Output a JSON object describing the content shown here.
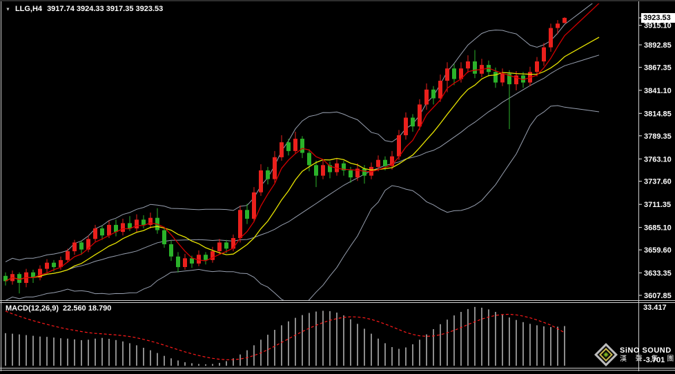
{
  "header": {
    "symbol": "LLG,H4",
    "ohlc": "3917.74 3924.33 3917.35 3923.53"
  },
  "macd_header": {
    "label": "MACD(12,26,9)",
    "values": "22.560 18.790"
  },
  "price_axis": {
    "current": "3923.53",
    "ticks": [
      "3915.10",
      "3892.85",
      "3867.35",
      "3841.10",
      "3814.85",
      "3789.35",
      "3763.10",
      "3737.60",
      "3711.35",
      "3685.10",
      "3659.60",
      "3633.35",
      "3607.85"
    ]
  },
  "macd_axis": {
    "max": "33.417",
    "min": "-3.701"
  },
  "logo": {
    "brand": "SiNO SOUND",
    "brand_cn": "漢 聲 集 團"
  },
  "colors": {
    "up": "#ea201c",
    "down": "#2bb32a",
    "band": "#98a0b0",
    "ma_fast": "#d40000",
    "ma_slow": "#e8e400",
    "macd_bar": "#c8c8c8",
    "macd_signal": "#ff1a1a",
    "bg": "#000000",
    "axis_text": "#ffffff",
    "badge_bg": "#ffffff",
    "badge_text": "#000000"
  },
  "chart_data": {
    "type": "candlestick",
    "symbol": "LLG",
    "timeframe": "H4",
    "title": "LLG,H4",
    "current_ohlc": {
      "open": 3917.74,
      "high": 3924.33,
      "low": 3917.35,
      "close": 3923.53
    },
    "y_axis_ticks": [
      3915.1,
      3892.85,
      3867.35,
      3841.1,
      3814.85,
      3789.35,
      3763.1,
      3737.6,
      3711.35,
      3685.1,
      3659.6,
      3633.35,
      3607.85
    ],
    "ylim": [
      3600,
      3930
    ],
    "grid": false,
    "legend_position": "none",
    "candles_ohlc": [
      [
        3630,
        3634,
        3619,
        3624
      ],
      [
        3624,
        3636,
        3620,
        3632
      ],
      [
        3632,
        3634,
        3610,
        3622
      ],
      [
        3622,
        3638,
        3617,
        3634
      ],
      [
        3634,
        3637,
        3622,
        3628
      ],
      [
        3628,
        3642,
        3625,
        3638
      ],
      [
        3638,
        3649,
        3634,
        3645
      ],
      [
        3645,
        3648,
        3635,
        3640
      ],
      [
        3640,
        3652,
        3637,
        3648
      ],
      [
        3648,
        3661,
        3645,
        3658
      ],
      [
        3658,
        3671,
        3654,
        3668
      ],
      [
        3668,
        3670,
        3654,
        3660
      ],
      [
        3660,
        3676,
        3657,
        3672
      ],
      [
        3672,
        3688,
        3669,
        3684
      ],
      [
        3684,
        3687,
        3671,
        3676
      ],
      [
        3676,
        3693,
        3673,
        3688
      ],
      [
        3688,
        3694,
        3675,
        3680
      ],
      [
        3680,
        3695,
        3676,
        3690
      ],
      [
        3690,
        3698,
        3681,
        3684
      ],
      [
        3684,
        3700,
        3680,
        3694
      ],
      [
        3694,
        3699,
        3684,
        3688
      ],
      [
        3688,
        3702,
        3684,
        3696
      ],
      [
        3696,
        3707,
        3678,
        3682
      ],
      [
        3682,
        3686,
        3662,
        3666
      ],
      [
        3666,
        3670,
        3647,
        3652
      ],
      [
        3652,
        3657,
        3634,
        3640
      ],
      [
        3640,
        3655,
        3637,
        3650
      ],
      [
        3650,
        3653,
        3639,
        3644
      ],
      [
        3644,
        3659,
        3641,
        3654
      ],
      [
        3654,
        3657,
        3643,
        3648
      ],
      [
        3648,
        3663,
        3645,
        3658
      ],
      [
        3658,
        3672,
        3655,
        3668
      ],
      [
        3668,
        3671,
        3656,
        3661
      ],
      [
        3661,
        3677,
        3658,
        3673
      ],
      [
        3673,
        3710,
        3668,
        3705
      ],
      [
        3705,
        3712,
        3689,
        3695
      ],
      [
        3695,
        3731,
        3691,
        3725
      ],
      [
        3725,
        3757,
        3721,
        3750
      ],
      [
        3750,
        3754,
        3734,
        3740
      ],
      [
        3740,
        3772,
        3736,
        3765
      ],
      [
        3765,
        3790,
        3761,
        3782
      ],
      [
        3782,
        3786,
        3767,
        3772
      ],
      [
        3772,
        3794,
        3769,
        3786
      ],
      [
        3786,
        3789,
        3764,
        3770
      ],
      [
        3770,
        3774,
        3749,
        3756
      ],
      [
        3756,
        3761,
        3731,
        3744
      ],
      [
        3744,
        3761,
        3740,
        3756
      ],
      [
        3756,
        3760,
        3741,
        3748
      ],
      [
        3748,
        3764,
        3744,
        3758
      ],
      [
        3758,
        3761,
        3744,
        3750
      ],
      [
        3750,
        3754,
        3736,
        3742
      ],
      [
        3742,
        3758,
        3738,
        3752
      ],
      [
        3752,
        3756,
        3735,
        3744
      ],
      [
        3744,
        3759,
        3740,
        3754
      ],
      [
        3754,
        3767,
        3749,
        3762
      ],
      [
        3762,
        3766,
        3750,
        3755
      ],
      [
        3755,
        3772,
        3751,
        3766
      ],
      [
        3766,
        3796,
        3762,
        3790
      ],
      [
        3790,
        3816,
        3785,
        3810
      ],
      [
        3810,
        3814,
        3794,
        3800
      ],
      [
        3800,
        3831,
        3796,
        3825
      ],
      [
        3825,
        3849,
        3819,
        3842
      ],
      [
        3842,
        3846,
        3825,
        3832
      ],
      [
        3832,
        3859,
        3828,
        3852
      ],
      [
        3852,
        3873,
        3839,
        3866
      ],
      [
        3866,
        3871,
        3847,
        3854
      ],
      [
        3854,
        3873,
        3850,
        3866
      ],
      [
        3866,
        3881,
        3861,
        3874
      ],
      [
        3874,
        3887,
        3855,
        3860
      ],
      [
        3860,
        3877,
        3856,
        3870
      ],
      [
        3870,
        3875,
        3857,
        3862
      ],
      [
        3862,
        3867,
        3844,
        3850
      ],
      [
        3850,
        3866,
        3846,
        3860
      ],
      [
        3860,
        3864,
        3797,
        3848
      ],
      [
        3848,
        3863,
        3841,
        3858
      ],
      [
        3858,
        3862,
        3844,
        3850
      ],
      [
        3850,
        3868,
        3846,
        3862
      ],
      [
        3862,
        3879,
        3857,
        3874
      ],
      [
        3874,
        3895,
        3869,
        3890
      ],
      [
        3890,
        3917,
        3885,
        3912
      ],
      [
        3912,
        3921,
        3905,
        3917
      ],
      [
        3917.74,
        3924.33,
        3917.35,
        3923.53
      ]
    ],
    "indicators": {
      "bollinger": {
        "period": 20,
        "deviation": 2
      },
      "ma_fast_period": 5,
      "ma_slow_period": 10,
      "macd": {
        "label": "MACD(12,26,9)",
        "current_macd": 22.56,
        "current_signal": 18.79,
        "scale_max": 33.417,
        "scale_min": -3.701,
        "histogram": [
          18.5,
          18.2,
          17.8,
          17.4,
          17.0,
          16.6,
          16.4,
          16.0,
          15.6,
          15.4,
          15.0,
          14.5,
          14.8,
          15.4,
          15.8,
          15.3,
          14.6,
          13.8,
          12.8,
          11.6,
          10.2,
          8.8,
          7.2,
          5.6,
          4.2,
          3.0,
          2.0,
          1.4,
          1.0,
          0.8,
          1.0,
          1.6,
          2.6,
          4.2,
          6.4,
          8.8,
          11.6,
          14.8,
          17.6,
          20.4,
          23.0,
          25.2,
          27.2,
          28.8,
          30.0,
          30.8,
          31.2,
          31.0,
          30.2,
          28.6,
          26.4,
          23.8,
          21.0,
          18.2,
          15.4,
          12.8,
          10.6,
          9.6,
          10.4,
          12.2,
          14.8,
          17.8,
          20.8,
          23.6,
          26.2,
          28.6,
          30.6,
          32.2,
          33.4,
          33.0,
          32.0,
          30.6,
          29.0,
          27.4,
          26.0,
          24.8,
          23.8,
          23.0,
          22.4,
          22.0,
          22.2,
          22.56
        ],
        "signal_line": [
          31.0,
          29.5,
          28.1,
          26.8,
          25.6,
          24.5,
          23.5,
          22.5,
          21.6,
          20.8,
          20.1,
          19.4,
          18.8,
          18.4,
          18.1,
          17.8,
          17.5,
          17.1,
          16.6,
          15.9,
          15.0,
          14.0,
          12.9,
          11.7,
          10.4,
          9.1,
          7.9,
          6.8,
          5.8,
          4.9,
          4.2,
          3.7,
          3.4,
          3.4,
          3.8,
          4.6,
          5.8,
          7.3,
          9.1,
          11.1,
          13.2,
          15.3,
          17.4,
          19.4,
          21.3,
          23.0,
          24.5,
          25.8,
          26.8,
          27.5,
          27.8,
          27.7,
          27.2,
          26.3,
          25.1,
          23.7,
          22.1,
          20.5,
          19.0,
          17.8,
          17.0,
          16.7,
          16.9,
          17.6,
          18.7,
          20.1,
          21.7,
          23.4,
          25.0,
          26.5,
          27.7,
          28.6,
          29.1,
          29.2,
          28.9,
          28.2,
          27.2,
          26.0,
          24.6,
          23.1,
          21.0,
          18.79
        ]
      }
    }
  }
}
